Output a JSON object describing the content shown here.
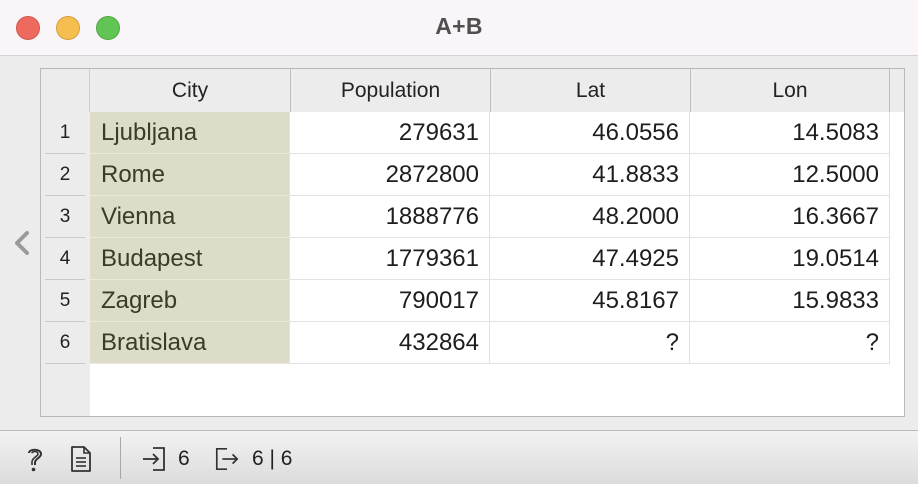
{
  "window": {
    "title": "A+B"
  },
  "table": {
    "columns": [
      "City",
      "Population",
      "Lat",
      "Lon"
    ],
    "rows": [
      {
        "index": "1",
        "city": "Ljubljana",
        "population": "279631",
        "lat": "46.0556",
        "lon": "14.5083"
      },
      {
        "index": "2",
        "city": "Rome",
        "population": "2872800",
        "lat": "41.8833",
        "lon": "12.5000"
      },
      {
        "index": "3",
        "city": "Vienna",
        "population": "1888776",
        "lat": "48.2000",
        "lon": "16.3667"
      },
      {
        "index": "4",
        "city": "Budapest",
        "population": "1779361",
        "lat": "47.4925",
        "lon": "19.0514"
      },
      {
        "index": "5",
        "city": "Zagreb",
        "population": "790017",
        "lat": "45.8167",
        "lon": "15.9833"
      },
      {
        "index": "6",
        "city": "Bratislava",
        "population": "432864",
        "lat": "?",
        "lon": "?"
      }
    ]
  },
  "statusbar": {
    "input_count": "6",
    "output_count": "6 | 6"
  },
  "icons": {
    "help": "help-icon",
    "report": "report-icon",
    "input": "input-icon",
    "output": "output-icon",
    "collapse": "chevron-left-icon"
  },
  "colors": {
    "meta_column_bg": "#dcdcc8",
    "close": "#ee6a5f",
    "minimize": "#f5be4f",
    "maximize": "#61c454"
  }
}
